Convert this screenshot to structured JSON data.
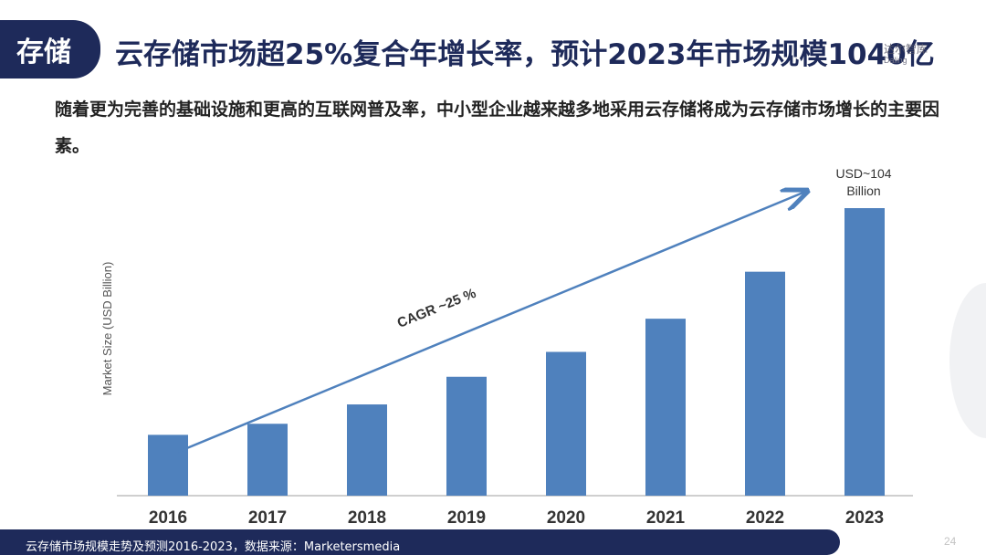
{
  "header": {
    "tag": "存储",
    "title": "云存储市场超25%复合年增长率，预计2023年市场规模1040亿",
    "logo_cn": "达尔智库",
    "logo_en": "Daling"
  },
  "description": "随着更为完善的基础设施和更高的互联网普及率，中小型企业越来越多地采用云存储将成为云存储市场增长的主要因素。",
  "chart_data": {
    "type": "bar",
    "ylabel": "Market Size (USD Billion)",
    "categories": [
      "2016",
      "2017",
      "2018",
      "2019",
      "2020",
      "2021",
      "2022",
      "2023"
    ],
    "values": [
      22,
      26,
      33,
      43,
      52,
      64,
      81,
      104
    ],
    "ylim": [
      0,
      110
    ],
    "grid": false,
    "bar_color": "#4f81bd",
    "annotations": {
      "cagr": "CAGR ~25 %",
      "top_value_line1": "USD~104",
      "top_value_line2": "Billion"
    }
  },
  "footer": {
    "source": "云存储市场规模走势及预测2016-2023，数据来源：Marketersmedia",
    "page": "24"
  },
  "colors": {
    "navy": "#1e2a5a",
    "bar": "#4f81bd",
    "arrow": "#4f81bd"
  }
}
